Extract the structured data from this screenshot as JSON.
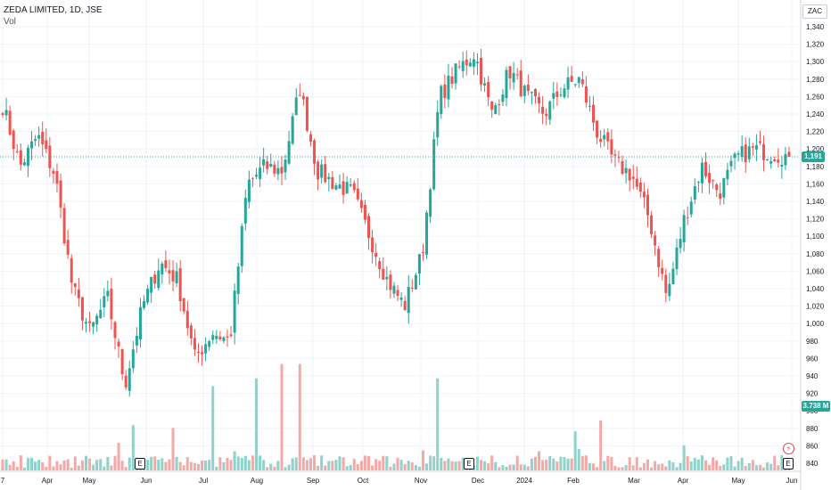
{
  "header": {
    "symbol_line": "ZEDA LIMITED, 1D, JSE",
    "indicator_label": "Vol"
  },
  "currency_button": "ZAC",
  "price_axis": {
    "ticks": [
      "1,340",
      "1,320",
      "1,300",
      "1,280",
      "1,260",
      "1,240",
      "1,220",
      "1,200",
      "1,180",
      "1,160",
      "1,140",
      "1,120",
      "1,100",
      "1,080",
      "1,060",
      "1,040",
      "1,020",
      "1,000",
      "980",
      "960",
      "940",
      "920",
      "900",
      "880",
      "860",
      "840"
    ],
    "last_price_label": "1,191",
    "volume_label": "3.738 M"
  },
  "time_axis": {
    "labels": [
      "7",
      "Apr",
      "May",
      "Jun",
      "Jul",
      "Aug",
      "Sep",
      "Oct",
      "Nov",
      "Dec",
      "2024",
      "Feb",
      "Mar",
      "Apr",
      "May",
      "Jun"
    ]
  },
  "events": {
    "earnings_label": "E",
    "dividend_label": "⚡"
  },
  "colors": {
    "up": "#26a69a",
    "down": "#ef5350",
    "up_volume": "#8fd2c9",
    "down_volume": "#f5a9a7",
    "grid": "#f0f3fa",
    "last_price_line": "#26a69a"
  },
  "chart_data": {
    "type": "candlestick",
    "title": "ZEDA LIMITED, 1D, JSE",
    "ylim": [
      830,
      1345
    ],
    "last_price": 1191,
    "last_volume_millions": 3.738,
    "series_close_path": [
      [
        "Mar",
        1250
      ],
      [
        "Apr",
        1180
      ],
      [
        "Apr",
        1215
      ],
      [
        "May",
        1170
      ],
      [
        "May",
        1040
      ],
      [
        "May",
        990
      ],
      [
        "Jun",
        1030
      ],
      [
        "Jun",
        930
      ],
      [
        "Jun",
        1020
      ],
      [
        "Jun",
        1070
      ],
      [
        "Jul",
        1050
      ],
      [
        "Jul",
        960
      ],
      [
        "Jul",
        990
      ],
      [
        "Jul",
        980
      ],
      [
        "Aug",
        1160
      ],
      [
        "Aug",
        1180
      ],
      [
        "Aug",
        1175
      ],
      [
        "Sep",
        1270
      ],
      [
        "Sep",
        1175
      ],
      [
        "Sep",
        1160
      ],
      [
        "Oct",
        1150
      ],
      [
        "Oct",
        1100
      ],
      [
        "Oct",
        1050
      ],
      [
        "Nov",
        1020
      ],
      [
        "Nov",
        1080
      ],
      [
        "Nov",
        1260
      ],
      [
        "Nov",
        1290
      ],
      [
        "Dec",
        1310
      ],
      [
        "Dec",
        1240
      ],
      [
        "Dec",
        1290
      ],
      [
        "2024",
        1260
      ],
      [
        "2024",
        1240
      ],
      [
        "2024",
        1270
      ],
      [
        "Feb",
        1280
      ],
      [
        "Feb",
        1220
      ],
      [
        "Feb",
        1185
      ],
      [
        "Mar",
        1170
      ],
      [
        "Mar",
        1120
      ],
      [
        "Mar",
        1030
      ],
      [
        "Apr",
        1120
      ],
      [
        "Apr",
        1180
      ],
      [
        "Apr",
        1150
      ],
      [
        "May",
        1190
      ],
      [
        "May",
        1200
      ],
      [
        "May",
        1195
      ],
      [
        "Jun",
        1191
      ]
    ]
  }
}
